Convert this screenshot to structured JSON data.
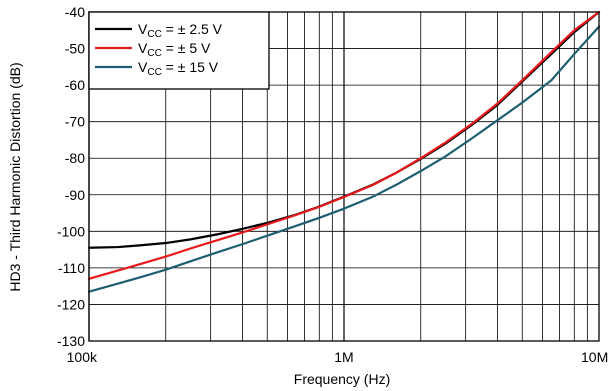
{
  "chart_data": {
    "type": "line",
    "xlabel": "Frequency (Hz)",
    "ylabel": "HD3 - Third Harmonic Distortion (dB)",
    "x_scale": "log",
    "xlim": [
      100000,
      10000000
    ],
    "ylim": [
      -130,
      -40
    ],
    "x_tick_labels": [
      "100k",
      "1M",
      "10M"
    ],
    "y_ticks": [
      -40,
      -50,
      -60,
      -70,
      -80,
      -90,
      -100,
      -110,
      -120,
      -130
    ],
    "grid": true,
    "legend_placement": "top-left",
    "series": [
      {
        "name": "V_CC = ± 2.5 V",
        "label_main": "V",
        "label_sub": "CC",
        "label_rest": " = ± 2.5 V",
        "color": "#000000",
        "x": [
          100000,
          130000,
          160000,
          200000,
          250000,
          320000,
          400000,
          500000,
          650000,
          800000,
          1000000,
          1300000,
          1600000,
          2000000,
          2500000,
          3200000,
          4000000,
          5000000,
          6500000,
          8000000,
          10000000
        ],
        "y": [
          -104.5,
          -104.3,
          -103.8,
          -103.2,
          -102.2,
          -100.8,
          -99.3,
          -97.7,
          -95.4,
          -93.2,
          -90.5,
          -87.2,
          -84.0,
          -80.2,
          -76.0,
          -70.7,
          -65.4,
          -59.0,
          -51.5,
          -45.5,
          -40.0
        ]
      },
      {
        "name": "V_CC = ± 5 V",
        "label_main": "V",
        "label_sub": "CC",
        "label_rest": " = ± 5 V",
        "color": "#e8191b",
        "x": [
          100000,
          130000,
          160000,
          200000,
          250000,
          320000,
          400000,
          500000,
          650000,
          800000,
          1000000,
          1300000,
          1600000,
          2000000,
          2500000,
          3200000,
          4000000,
          5000000,
          6500000,
          8000000,
          10000000
        ],
        "y": [
          -113.0,
          -110.7,
          -108.9,
          -106.9,
          -104.7,
          -102.4,
          -100.3,
          -98.1,
          -95.5,
          -93.3,
          -90.6,
          -87.3,
          -84.0,
          -80.0,
          -75.7,
          -70.4,
          -65.0,
          -58.7,
          -51.0,
          -45.0,
          -40.0
        ]
      },
      {
        "name": "V_CC = ± 15 V",
        "label_main": "V",
        "label_sub": "CC",
        "label_rest": " = ± 15 V",
        "color": "#1d5e70",
        "x": [
          100000,
          130000,
          160000,
          200000,
          250000,
          320000,
          400000,
          500000,
          650000,
          800000,
          1000000,
          1300000,
          1600000,
          2000000,
          2500000,
          3200000,
          4000000,
          5000000,
          6500000,
          8000000,
          10000000
        ],
        "y": [
          -116.5,
          -114.3,
          -112.5,
          -110.5,
          -108.2,
          -105.7,
          -103.5,
          -101.2,
          -98.5,
          -96.3,
          -93.8,
          -90.5,
          -87.3,
          -83.5,
          -79.5,
          -74.4,
          -69.6,
          -64.8,
          -58.7,
          -51.5,
          -44.0
        ]
      }
    ]
  }
}
